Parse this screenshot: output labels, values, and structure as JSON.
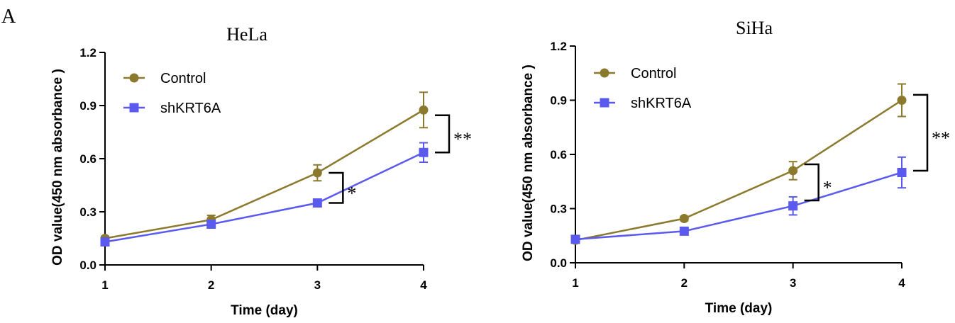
{
  "panel_label": "A",
  "colors": {
    "control": "#8B7A2E",
    "shKRT6A": "#5A5AEF",
    "axis": "#000000"
  },
  "chart_data": [
    {
      "type": "line",
      "title": "HeLa",
      "xlabel": "Time (day)",
      "ylabel": "OD value(450 nm absorbance )",
      "x": [
        1,
        2,
        3,
        4
      ],
      "xticks": [
        "1",
        "2",
        "3",
        "4"
      ],
      "ylim": [
        0,
        1.2
      ],
      "yticks": [
        "0.0",
        "0.3",
        "0.6",
        "0.9",
        "1.2"
      ],
      "legend_position": "top-left",
      "series": [
        {
          "name": "Control",
          "marker": "circle",
          "values": [
            0.15,
            0.255,
            0.52,
            0.875
          ],
          "errors": [
            0.012,
            0.025,
            0.045,
            0.1
          ]
        },
        {
          "name": "shKRT6A",
          "marker": "square",
          "values": [
            0.13,
            0.23,
            0.35,
            0.635
          ],
          "errors": [
            0.01,
            0.015,
            0.015,
            0.055
          ]
        }
      ],
      "significance": [
        {
          "x": 3,
          "y1": 0.52,
          "y2": 0.35,
          "label": "*"
        },
        {
          "x": 4,
          "y1": 0.845,
          "y2": 0.635,
          "label": "**"
        }
      ]
    },
    {
      "type": "line",
      "title": "SiHa",
      "xlabel": "Time (day)",
      "ylabel": "OD value(450 nm absorbance )",
      "x": [
        1,
        2,
        3,
        4
      ],
      "xticks": [
        "1",
        "2",
        "3",
        "4"
      ],
      "ylim": [
        0,
        1.2
      ],
      "yticks": [
        "0.0",
        "0.3",
        "0.6",
        "0.9",
        "1.2"
      ],
      "legend_position": "top-left",
      "series": [
        {
          "name": "Control",
          "marker": "circle",
          "values": [
            0.125,
            0.245,
            0.51,
            0.9
          ],
          "errors": [
            0.01,
            0.012,
            0.05,
            0.09
          ]
        },
        {
          "name": "shKRT6A",
          "marker": "square",
          "values": [
            0.13,
            0.175,
            0.315,
            0.5
          ],
          "errors": [
            0.01,
            0.012,
            0.05,
            0.085
          ]
        }
      ],
      "significance": [
        {
          "x": 3,
          "y1": 0.545,
          "y2": 0.345,
          "label": "*"
        },
        {
          "x": 4,
          "y1": 0.93,
          "y2": 0.51,
          "label": "**"
        }
      ]
    }
  ]
}
